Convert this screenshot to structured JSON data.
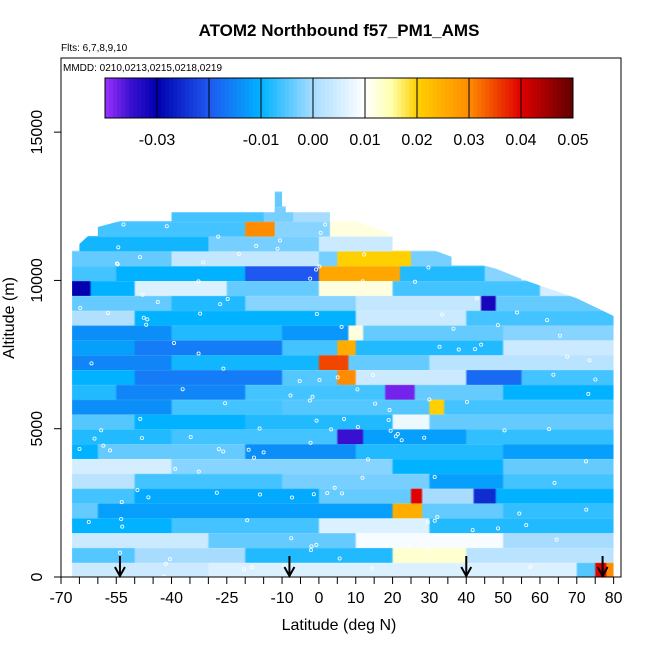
{
  "chart_data": {
    "type": "heatmap",
    "title": "ATOM2 Northbound f57_PM1_AMS",
    "subtitle_flights": "Flts: 6,7,8,9,10",
    "subtitle_dates": "MMDD: 0210,0213,0215,0218,0219",
    "xlabel": "Latitude (deg N)",
    "ylabel": "Altitude (m)",
    "xlim": [
      -70,
      82
    ],
    "ylim": [
      0,
      17500
    ],
    "x_ticks": [
      -70,
      -55,
      -40,
      -25,
      -10,
      0,
      10,
      20,
      30,
      40,
      50,
      60,
      70,
      80
    ],
    "x_tick_labels": [
      "-70",
      "-55",
      "-40",
      "-25",
      "-10",
      "0",
      "10",
      "20",
      "30",
      "40",
      "50",
      "60",
      "70",
      "80"
    ],
    "x_minor_ticks": [
      -65,
      -60,
      -50,
      -45,
      -35,
      -30,
      -20,
      -15,
      -5,
      5,
      15,
      25,
      35,
      45,
      55,
      65,
      75
    ],
    "y_ticks": [
      0,
      5000,
      10000,
      15000
    ],
    "y_tick_labels": [
      "0",
      "5000",
      "10000",
      "15000"
    ],
    "colorbar": {
      "range": [
        -0.04,
        0.05
      ],
      "ticks": [
        -0.03,
        -0.01,
        0.0,
        0.01,
        0.02,
        0.03,
        0.04,
        0.05
      ],
      "tick_labels": [
        "-0.03",
        "-0.01",
        "0.00",
        "0.01",
        "0.02",
        "0.03",
        "0.04",
        "0.05"
      ],
      "stops": [
        {
          "v": -0.04,
          "c": "#9b30ff"
        },
        {
          "v": -0.035,
          "c": "#3a10d0"
        },
        {
          "v": -0.03,
          "c": "#0000b0"
        },
        {
          "v": -0.02,
          "c": "#1f58f0"
        },
        {
          "v": -0.01,
          "c": "#00b2ff"
        },
        {
          "v": 0.0,
          "c": "#a8dcff"
        },
        {
          "v": 0.01,
          "c": "#ffffff"
        },
        {
          "v": 0.015,
          "c": "#ffffb0"
        },
        {
          "v": 0.02,
          "c": "#ffd000"
        },
        {
          "v": 0.03,
          "c": "#ff8c00"
        },
        {
          "v": 0.04,
          "c": "#e00000"
        },
        {
          "v": 0.05,
          "c": "#600000"
        }
      ]
    },
    "profile_latitudes": [
      -54,
      -8,
      40,
      77
    ],
    "domain_edges": {
      "left_lat": -67,
      "right_top": [
        [
          10000,
          55
        ],
        [
          10700,
          36
        ],
        [
          11400,
          20
        ],
        [
          12400,
          3
        ],
        [
          13000,
          -7
        ]
      ],
      "right_lat_low": 80,
      "top_alt": 12300
    },
    "data_rows": [
      {
        "alt": 0,
        "h": 500,
        "segments": [
          [
            -67,
            -30,
            0.004
          ],
          [
            -30,
            70,
            0.006
          ],
          [
            70,
            75,
            -0.005
          ],
          [
            75,
            78,
            0.04
          ],
          [
            78,
            80,
            0.03
          ]
        ]
      },
      {
        "alt": 500,
        "h": 500,
        "segments": [
          [
            -67,
            -50,
            -0.005
          ],
          [
            -50,
            -20,
            0.0
          ],
          [
            -20,
            20,
            -0.008
          ],
          [
            20,
            40,
            0.013
          ],
          [
            40,
            80,
            0.002
          ]
        ]
      },
      {
        "alt": 1000,
        "h": 500,
        "segments": [
          [
            -67,
            -30,
            0.004
          ],
          [
            -30,
            10,
            -0.004
          ],
          [
            10,
            50,
            0.009
          ],
          [
            50,
            80,
            0.0
          ]
        ]
      },
      {
        "alt": 1500,
        "h": 500,
        "segments": [
          [
            -67,
            -40,
            -0.01
          ],
          [
            -40,
            0,
            -0.006
          ],
          [
            0,
            30,
            0.006
          ],
          [
            30,
            80,
            -0.008
          ]
        ]
      },
      {
        "alt": 2000,
        "h": 500,
        "segments": [
          [
            -67,
            -60,
            -0.004
          ],
          [
            -60,
            20,
            -0.012
          ],
          [
            20,
            28,
            0.025
          ],
          [
            28,
            50,
            -0.004
          ],
          [
            50,
            80,
            -0.007
          ]
        ]
      },
      {
        "alt": 2500,
        "h": 500,
        "segments": [
          [
            -67,
            -50,
            -0.006
          ],
          [
            -50,
            0,
            -0.011
          ],
          [
            0,
            25,
            -0.004
          ],
          [
            25,
            28,
            0.04
          ],
          [
            28,
            42,
            0.0
          ],
          [
            42,
            48,
            -0.025
          ],
          [
            48,
            80,
            -0.01
          ]
        ]
      },
      {
        "alt": 3000,
        "h": 500,
        "segments": [
          [
            -67,
            -50,
            0.002
          ],
          [
            -50,
            -10,
            -0.006
          ],
          [
            -10,
            30,
            -0.003
          ],
          [
            30,
            50,
            -0.012
          ],
          [
            50,
            80,
            -0.006
          ]
        ]
      },
      {
        "alt": 3500,
        "h": 500,
        "segments": [
          [
            -67,
            -40,
            0.005
          ],
          [
            -40,
            20,
            -0.002
          ],
          [
            20,
            50,
            -0.01
          ],
          [
            50,
            80,
            -0.004
          ]
        ]
      },
      {
        "alt": 4000,
        "h": 500,
        "segments": [
          [
            -67,
            -60,
            -0.01
          ],
          [
            -60,
            -20,
            -0.004
          ],
          [
            -20,
            10,
            -0.014
          ],
          [
            10,
            50,
            -0.008
          ],
          [
            50,
            80,
            -0.012
          ]
        ]
      },
      {
        "alt": 4500,
        "h": 500,
        "segments": [
          [
            -67,
            -40,
            -0.008
          ],
          [
            -40,
            5,
            -0.006
          ],
          [
            5,
            12,
            -0.035
          ],
          [
            12,
            40,
            -0.012
          ],
          [
            40,
            80,
            -0.007
          ]
        ]
      },
      {
        "alt": 5000,
        "h": 500,
        "segments": [
          [
            -67,
            -50,
            -0.005
          ],
          [
            -50,
            -20,
            -0.01
          ],
          [
            -20,
            20,
            -0.008
          ],
          [
            20,
            30,
            0.008
          ],
          [
            30,
            80,
            -0.004
          ]
        ]
      },
      {
        "alt": 5500,
        "h": 500,
        "segments": [
          [
            -67,
            -40,
            -0.014
          ],
          [
            -40,
            -10,
            -0.006
          ],
          [
            -10,
            30,
            -0.005
          ],
          [
            30,
            34,
            0.02
          ],
          [
            34,
            80,
            -0.006
          ]
        ]
      },
      {
        "alt": 6000,
        "h": 500,
        "segments": [
          [
            -67,
            -55,
            -0.008
          ],
          [
            -55,
            -20,
            -0.015
          ],
          [
            -20,
            18,
            -0.006
          ],
          [
            18,
            26,
            -0.038
          ],
          [
            26,
            50,
            -0.004
          ],
          [
            50,
            80,
            -0.01
          ]
        ]
      },
      {
        "alt": 6500,
        "h": 500,
        "segments": [
          [
            -67,
            -50,
            -0.01
          ],
          [
            -50,
            -10,
            -0.016
          ],
          [
            -10,
            5,
            -0.005
          ],
          [
            5,
            10,
            0.03
          ],
          [
            10,
            40,
            0.004
          ],
          [
            40,
            55,
            -0.018
          ],
          [
            55,
            80,
            -0.006
          ]
        ]
      },
      {
        "alt": 7000,
        "h": 500,
        "segments": [
          [
            -67,
            -40,
            -0.015
          ],
          [
            -40,
            0,
            -0.009
          ],
          [
            0,
            8,
            0.035
          ],
          [
            8,
            30,
            -0.004
          ],
          [
            30,
            80,
            0.002
          ]
        ]
      },
      {
        "alt": 7500,
        "h": 500,
        "segments": [
          [
            -67,
            -50,
            -0.012
          ],
          [
            -50,
            -10,
            -0.016
          ],
          [
            -10,
            5,
            -0.006
          ],
          [
            5,
            10,
            0.025
          ],
          [
            10,
            50,
            -0.008
          ],
          [
            50,
            80,
            0.004
          ]
        ]
      },
      {
        "alt": 8000,
        "h": 500,
        "segments": [
          [
            -67,
            -40,
            -0.014
          ],
          [
            -40,
            -10,
            -0.008
          ],
          [
            -10,
            8,
            -0.013
          ],
          [
            8,
            12,
            0.012
          ],
          [
            12,
            50,
            -0.004
          ],
          [
            50,
            80,
            -0.002
          ]
        ]
      },
      {
        "alt": 8500,
        "h": 500,
        "segments": [
          [
            -67,
            -50,
            0.001
          ],
          [
            -50,
            10,
            -0.01
          ],
          [
            10,
            40,
            0.004
          ],
          [
            40,
            80,
            -0.006
          ]
        ]
      },
      {
        "alt": 9000,
        "h": 500,
        "segments": [
          [
            -67,
            -40,
            -0.004
          ],
          [
            -40,
            -20,
            -0.008
          ],
          [
            -20,
            10,
            -0.002
          ],
          [
            10,
            44,
            0.003
          ],
          [
            44,
            48,
            -0.032
          ],
          [
            48,
            80,
            -0.004
          ]
        ]
      },
      {
        "alt": 9500,
        "h": 500,
        "segments": [
          [
            -67,
            -62,
            -0.03
          ],
          [
            -62,
            -50,
            -0.01
          ],
          [
            -50,
            -25,
            0.006
          ],
          [
            -25,
            0,
            -0.004
          ],
          [
            0,
            20,
            0.012
          ],
          [
            20,
            60,
            -0.006
          ],
          [
            60,
            80,
            0.005
          ]
        ]
      },
      {
        "alt": 10000,
        "h": 500,
        "segments": [
          [
            -67,
            -55,
            -0.006
          ],
          [
            -55,
            -20,
            -0.01
          ],
          [
            -20,
            0,
            -0.02
          ],
          [
            0,
            22,
            0.026
          ],
          [
            22,
            45,
            -0.008
          ],
          [
            45,
            55,
            -0.002
          ]
        ]
      },
      {
        "alt": 10500,
        "h": 500,
        "segments": [
          [
            -67,
            -40,
            -0.004
          ],
          [
            -40,
            0,
            0.003
          ],
          [
            0,
            5,
            -0.003
          ],
          [
            5,
            25,
            0.02
          ],
          [
            25,
            36,
            -0.003
          ]
        ]
      },
      {
        "alt": 11000,
        "h": 500,
        "segments": [
          [
            -65,
            -30,
            -0.009
          ],
          [
            -30,
            0,
            -0.003
          ],
          [
            0,
            20,
            0.004
          ]
        ]
      },
      {
        "alt": 11500,
        "h": 500,
        "segments": [
          [
            -60,
            -20,
            -0.006
          ],
          [
            -20,
            -12,
            0.03
          ],
          [
            -12,
            3,
            -0.002
          ],
          [
            3,
            20,
            0.012
          ]
        ]
      },
      {
        "alt": 12000,
        "h": 500,
        "segments": [
          [
            -40,
            -15,
            -0.006
          ],
          [
            -15,
            -7,
            -0.003
          ],
          [
            -7,
            3,
            0.0
          ]
        ]
      },
      {
        "alt": 12500,
        "h": 500,
        "segments": [
          [
            -12,
            -10,
            -0.004
          ]
        ]
      }
    ]
  }
}
